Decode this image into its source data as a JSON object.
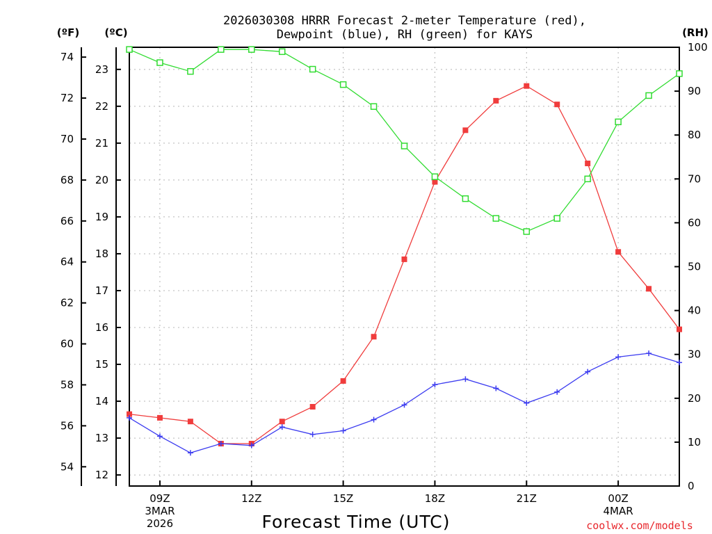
{
  "chart_data": {
    "type": "line",
    "title_line1": "2026030308 HRRR Forecast 2-meter Temperature (red),",
    "title_line2": "Dewpoint (blue), RH (green) for KAYS",
    "unit_f": "(ºF)",
    "unit_c": "(ºC)",
    "unit_rh": "(RH)",
    "xlabel": "Forecast Time (UTC)",
    "credit": "coolwx.com/models",
    "x_hours": [
      8,
      9,
      10,
      11,
      12,
      13,
      14,
      15,
      16,
      17,
      18,
      19,
      20,
      21,
      22,
      23,
      24,
      25,
      26
    ],
    "x_ticks": [
      {
        "hour": 9,
        "lines": [
          "09Z",
          "3MAR",
          "2026"
        ]
      },
      {
        "hour": 12,
        "lines": [
          "12Z"
        ]
      },
      {
        "hour": 15,
        "lines": [
          "15Z"
        ]
      },
      {
        "hour": 18,
        "lines": [
          "18Z"
        ]
      },
      {
        "hour": 21,
        "lines": [
          "21Z"
        ]
      },
      {
        "hour": 24,
        "lines": [
          "00Z",
          "4MAR"
        ]
      }
    ],
    "x_range": [
      8,
      26
    ],
    "ylim_c": [
      11.7,
      23.6
    ],
    "yticks_c": [
      12,
      13,
      14,
      15,
      16,
      17,
      18,
      19,
      20,
      21,
      22,
      23
    ],
    "yticks_f": [
      54,
      56,
      58,
      60,
      62,
      64,
      66,
      68,
      70,
      72,
      74
    ],
    "ylim_rh": [
      0,
      100
    ],
    "yticks_rh": [
      0,
      10,
      20,
      30,
      40,
      50,
      60,
      70,
      80,
      90,
      100
    ],
    "series": [
      {
        "name": "Temperature",
        "axis": "c",
        "color": "#f03c3c",
        "marker": "filled-square",
        "values": [
          13.65,
          13.55,
          13.45,
          12.85,
          12.85,
          13.45,
          13.85,
          14.55,
          15.75,
          17.85,
          19.95,
          21.35,
          22.15,
          22.55,
          22.05,
          20.45,
          18.05,
          17.05,
          15.95
        ]
      },
      {
        "name": "Dewpoint",
        "axis": "c",
        "color": "#3c3cf0",
        "marker": "plus",
        "values": [
          13.55,
          13.05,
          12.6,
          12.85,
          12.8,
          13.3,
          13.1,
          13.2,
          13.5,
          13.9,
          14.45,
          14.6,
          14.35,
          13.95,
          14.25,
          14.8,
          15.2,
          15.3,
          15.05
        ]
      },
      {
        "name": "RH",
        "axis": "rh",
        "color": "#32dc32",
        "marker": "open-square",
        "values": [
          99.5,
          96.5,
          94.5,
          99.5,
          99.5,
          99,
          95,
          91.5,
          86.5,
          77.5,
          70.5,
          65.5,
          61,
          58,
          61,
          70,
          83,
          89,
          94
        ]
      }
    ]
  }
}
